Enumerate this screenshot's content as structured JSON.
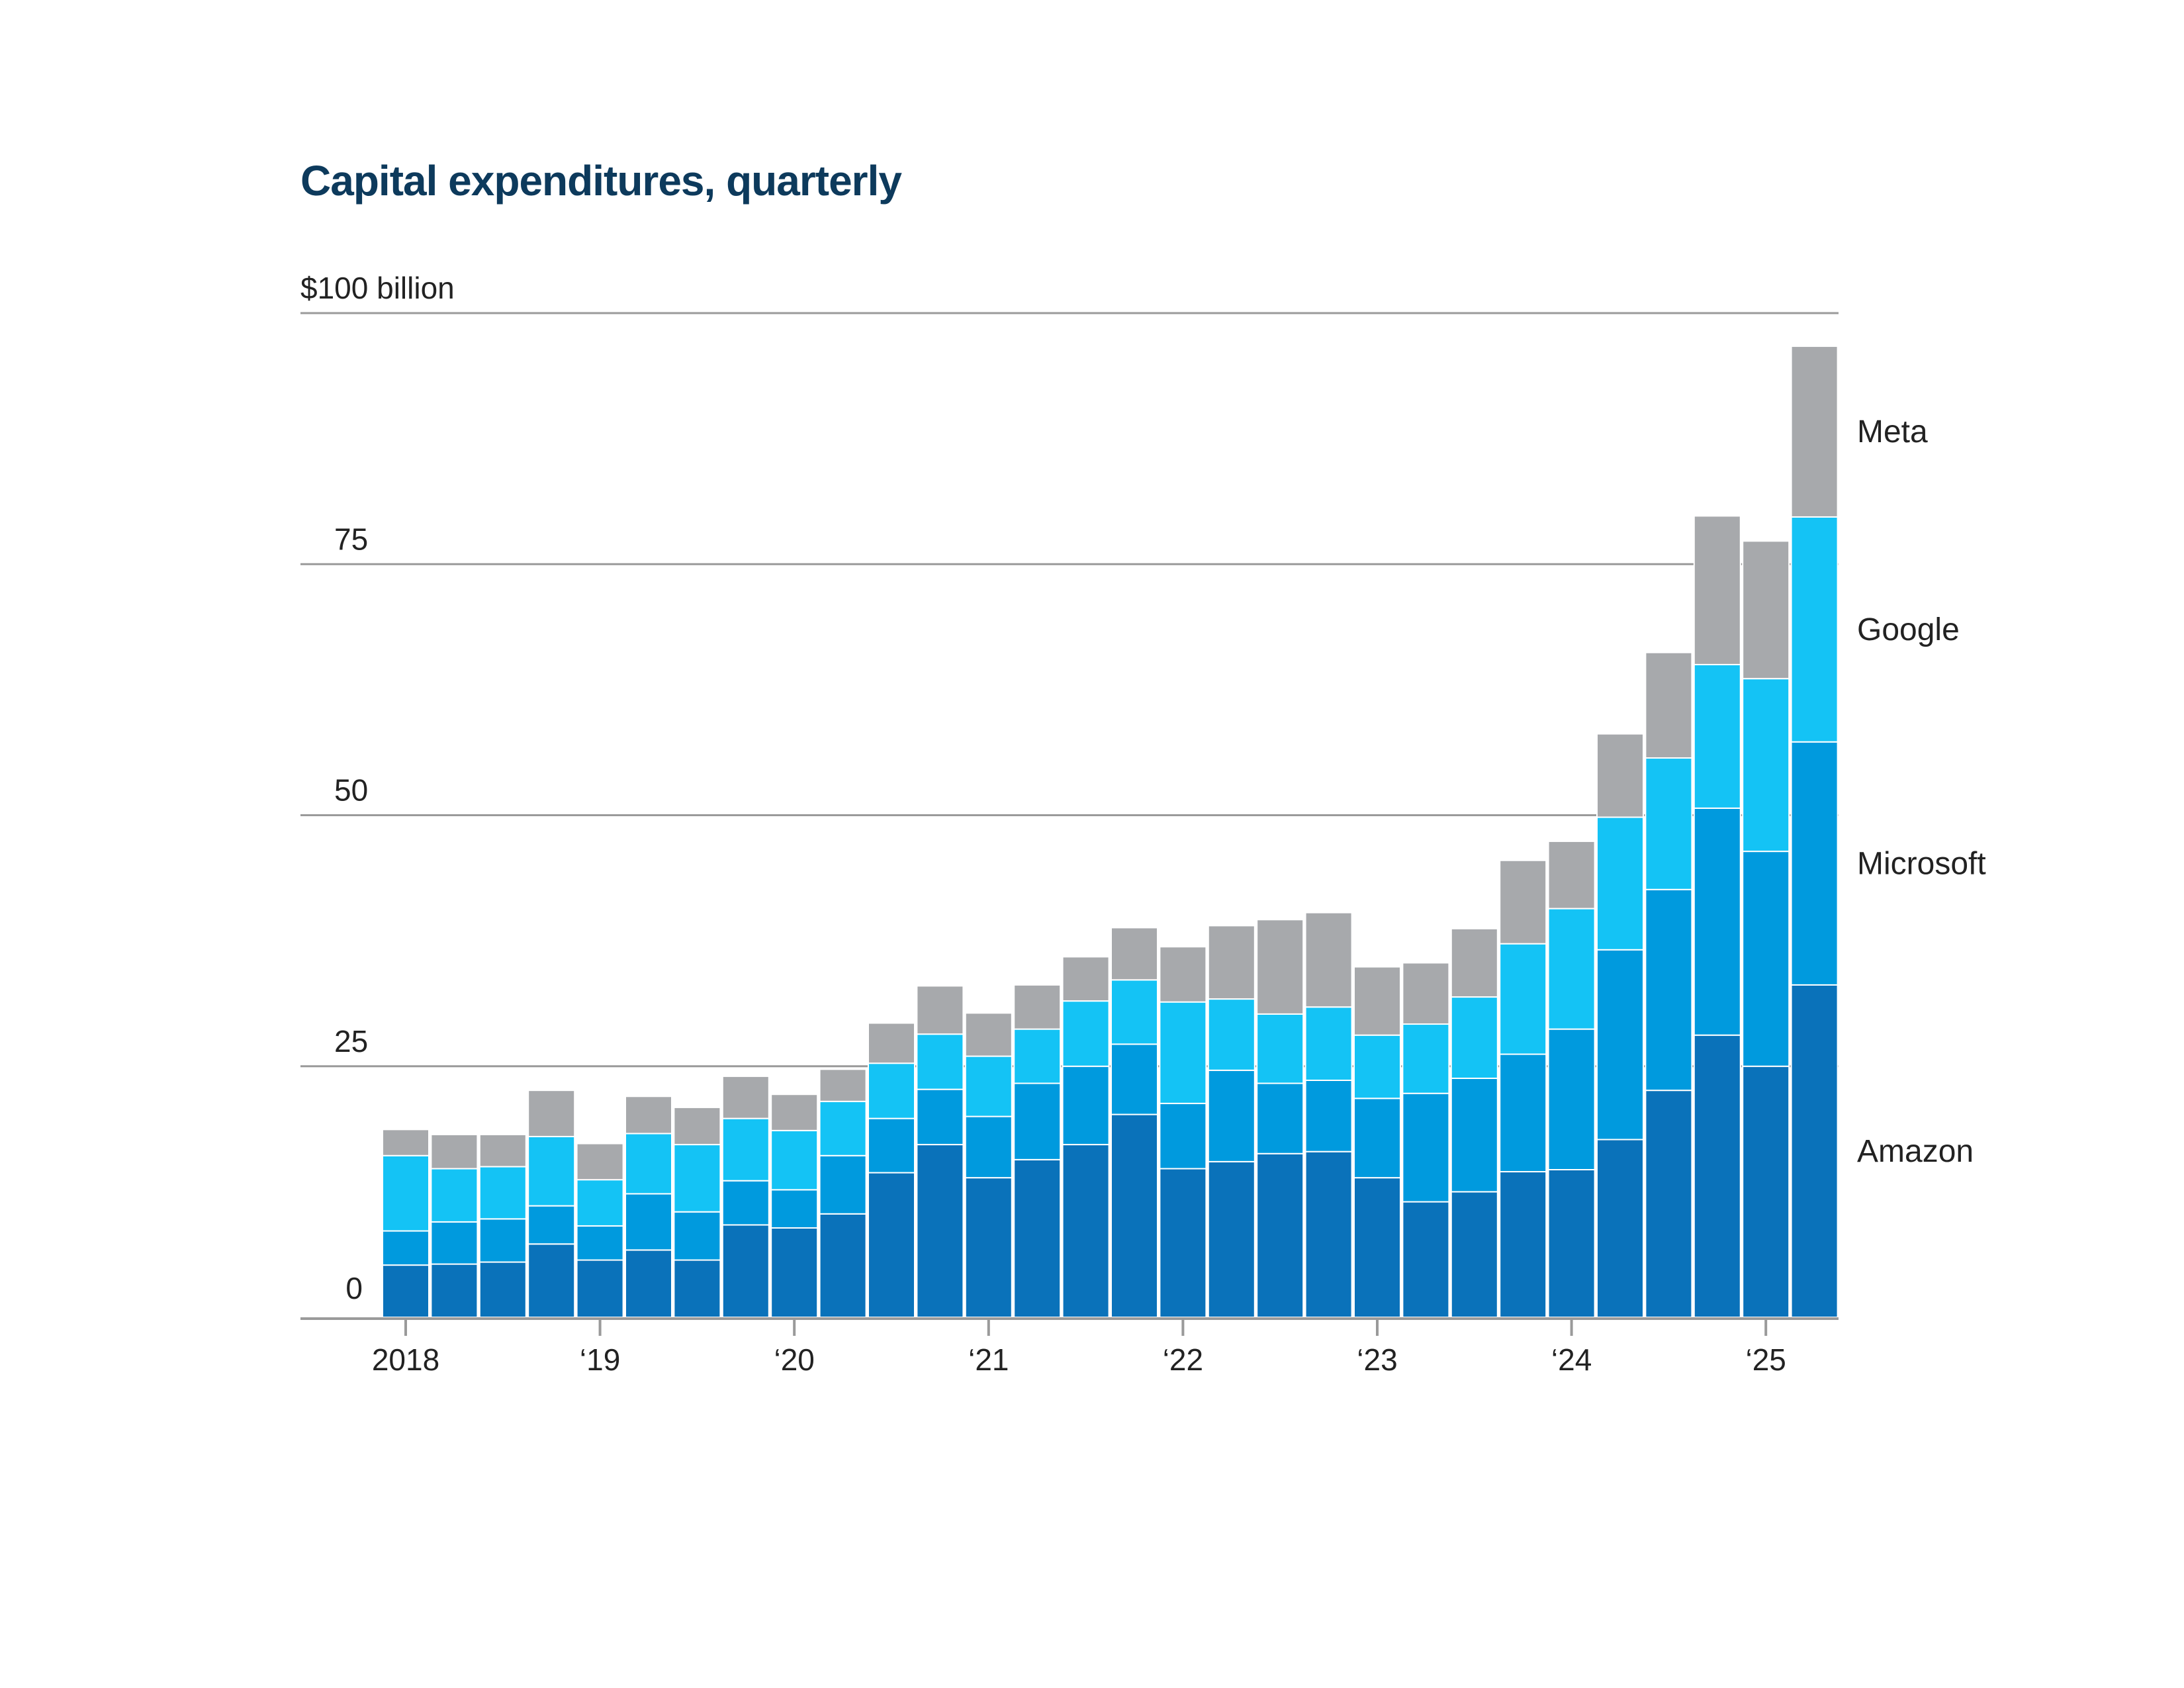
{
  "chart_data": {
    "type": "bar",
    "stacked": true,
    "title": "Capital expenditures, quarterly",
    "y_unit_label": "$100 billion",
    "ylim": [
      0,
      100
    ],
    "y_ticks": [
      {
        "value": 100,
        "label": "$100 billion"
      },
      {
        "value": 75,
        "label": "75"
      },
      {
        "value": 50,
        "label": "50"
      },
      {
        "value": 25,
        "label": "25"
      },
      {
        "value": 0,
        "label": "0"
      }
    ],
    "x_labels": [
      {
        "index": 0,
        "label": "2018"
      },
      {
        "index": 4,
        "label": "‘19"
      },
      {
        "index": 8,
        "label": "‘20"
      },
      {
        "index": 12,
        "label": "‘21"
      },
      {
        "index": 16,
        "label": "‘22"
      },
      {
        "index": 20,
        "label": "‘23"
      },
      {
        "index": 24,
        "label": "‘24"
      },
      {
        "index": 28,
        "label": "‘25"
      }
    ],
    "grid": true,
    "legend": "direct labels at right",
    "series": [
      {
        "name": "Amazon",
        "color": "#0a72ba",
        "values": [
          5.2,
          5.3,
          5.5,
          7.3,
          5.7,
          6.7,
          5.7,
          9.2,
          8.9,
          10.3,
          14.4,
          17.2,
          13.9,
          15.7,
          17.2,
          20.2,
          14.8,
          15.5,
          16.3,
          16.5,
          13.9,
          11.5,
          12.5,
          14.5,
          14.7,
          17.7,
          22.6,
          28.1,
          25.0,
          33.1
        ]
      },
      {
        "name": "Microsoft",
        "color": "#009ade",
        "values": [
          3.4,
          4.2,
          4.3,
          3.8,
          3.4,
          5.6,
          4.8,
          4.4,
          3.8,
          5.8,
          5.4,
          5.5,
          6.1,
          7.6,
          7.8,
          7.0,
          6.5,
          9.1,
          7.0,
          7.1,
          7.9,
          10.8,
          11.3,
          11.7,
          14.0,
          18.9,
          20.0,
          22.6,
          21.4,
          24.2
        ]
      },
      {
        "name": "Google",
        "color": "#14c3f5",
        "values": [
          7.5,
          5.3,
          5.2,
          6.9,
          4.6,
          6.0,
          6.7,
          6.2,
          5.9,
          5.4,
          5.5,
          5.5,
          6.0,
          5.4,
          6.5,
          6.4,
          10.1,
          7.1,
          6.9,
          7.3,
          6.3,
          6.9,
          8.1,
          11.0,
          12.0,
          13.2,
          13.1,
          14.3,
          17.2,
          22.4
        ]
      },
      {
        "name": "Meta",
        "color": "#a7a9ac",
        "values": [
          2.6,
          3.4,
          3.2,
          4.6,
          3.6,
          3.7,
          3.7,
          4.2,
          3.6,
          3.2,
          4.0,
          4.8,
          4.3,
          4.4,
          4.4,
          5.2,
          5.5,
          7.3,
          9.4,
          9.4,
          6.8,
          6.1,
          6.8,
          8.3,
          6.7,
          8.3,
          10.5,
          14.8,
          13.7,
          17.0
        ]
      }
    ]
  }
}
